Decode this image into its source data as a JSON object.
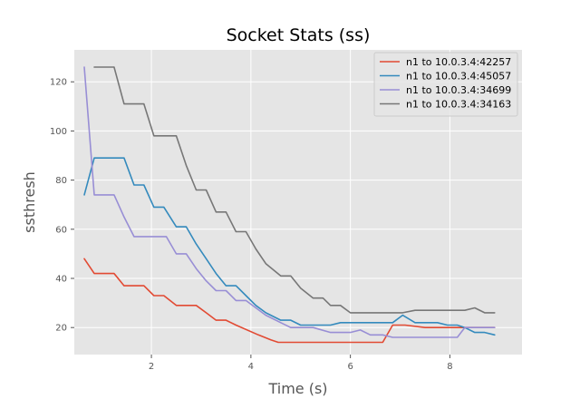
{
  "chart_data": {
    "type": "line",
    "title": "Socket Stats (ss)",
    "xlabel": "Time (s)",
    "ylabel": "ssthresh",
    "xlim": [
      0.45,
      9.45
    ],
    "ylim": [
      9,
      133
    ],
    "xticks": [
      2,
      4,
      6,
      8
    ],
    "yticks": [
      20,
      40,
      60,
      80,
      100,
      120
    ],
    "grid": true,
    "legend_position": "top-right",
    "series": [
      {
        "name": "n1 to 10.0.3.4:42257",
        "color": "#E24A33",
        "x": [
          0.65,
          0.85,
          1.25,
          1.45,
          1.85,
          2.05,
          2.25,
          2.5,
          2.9,
          3.1,
          3.3,
          3.5,
          3.7,
          4.15,
          4.4,
          4.55,
          4.8,
          5.05,
          5.25,
          5.6,
          6.0,
          6.45,
          6.65,
          6.85,
          7.1,
          7.5,
          7.75,
          7.9,
          8.3,
          8.6,
          8.9
        ],
        "y": [
          48,
          42,
          42,
          37,
          37,
          33,
          33,
          29,
          29,
          26,
          23,
          23,
          21,
          17,
          15,
          14,
          14,
          14,
          14,
          14,
          14,
          14,
          14,
          21,
          21,
          20,
          20,
          20,
          20,
          20,
          20
        ]
      },
      {
        "name": "n1 to 10.0.3.4:45057",
        "color": "#348ABD",
        "x": [
          0.65,
          0.85,
          1.25,
          1.45,
          1.65,
          1.85,
          2.05,
          2.25,
          2.5,
          2.7,
          2.9,
          3.1,
          3.3,
          3.5,
          3.7,
          3.9,
          4.1,
          4.3,
          4.6,
          4.8,
          5.0,
          5.25,
          5.6,
          5.8,
          6.0,
          6.5,
          6.85,
          7.05,
          7.3,
          7.5,
          7.75,
          7.95,
          8.15,
          8.3,
          8.5,
          8.7,
          8.9
        ],
        "y": [
          74,
          89,
          89,
          89,
          78,
          78,
          69,
          69,
          61,
          61,
          54,
          48,
          42,
          37,
          37,
          33,
          29,
          26,
          23,
          23,
          21,
          21,
          21,
          22,
          22,
          22,
          22,
          25,
          22,
          22,
          22,
          21,
          21,
          20,
          18,
          18,
          17
        ]
      },
      {
        "name": "n1 to 10.0.3.4:34699",
        "color": "#988ED5",
        "x": [
          0.65,
          0.85,
          1.25,
          1.45,
          1.65,
          1.85,
          2.05,
          2.3,
          2.5,
          2.7,
          2.9,
          3.1,
          3.3,
          3.5,
          3.7,
          3.9,
          4.1,
          4.3,
          4.6,
          4.8,
          5.0,
          5.25,
          5.6,
          5.8,
          6.0,
          6.2,
          6.4,
          6.65,
          6.85,
          7.05,
          7.3,
          7.5,
          7.75,
          7.95,
          8.15,
          8.3,
          8.5,
          8.7,
          8.9
        ],
        "y": [
          126,
          74,
          74,
          65,
          57,
          57,
          57,
          57,
          50,
          50,
          44,
          39,
          35,
          35,
          31,
          31,
          28,
          25,
          22,
          20,
          20,
          20,
          18,
          18,
          18,
          19,
          17,
          17,
          16,
          16,
          16,
          16,
          16,
          16,
          16,
          20,
          20,
          20,
          20
        ]
      },
      {
        "name": "n1 to 10.0.3.4:34163",
        "color": "#777777",
        "x": [
          0.85,
          1.25,
          1.45,
          1.85,
          2.05,
          2.5,
          2.7,
          2.9,
          3.1,
          3.3,
          3.5,
          3.7,
          3.9,
          4.1,
          4.3,
          4.6,
          4.8,
          5.0,
          5.25,
          5.45,
          5.6,
          5.8,
          6.0,
          6.5,
          6.85,
          7.05,
          7.3,
          7.5,
          7.75,
          7.95,
          8.15,
          8.3,
          8.5,
          8.7,
          8.9
        ],
        "y": [
          126,
          126,
          111,
          111,
          98,
          98,
          86,
          76,
          76,
          67,
          67,
          59,
          59,
          52,
          46,
          41,
          41,
          36,
          32,
          32,
          29,
          29,
          26,
          26,
          26,
          26,
          27,
          27,
          27,
          27,
          27,
          27,
          28,
          26,
          26
        ]
      }
    ]
  }
}
